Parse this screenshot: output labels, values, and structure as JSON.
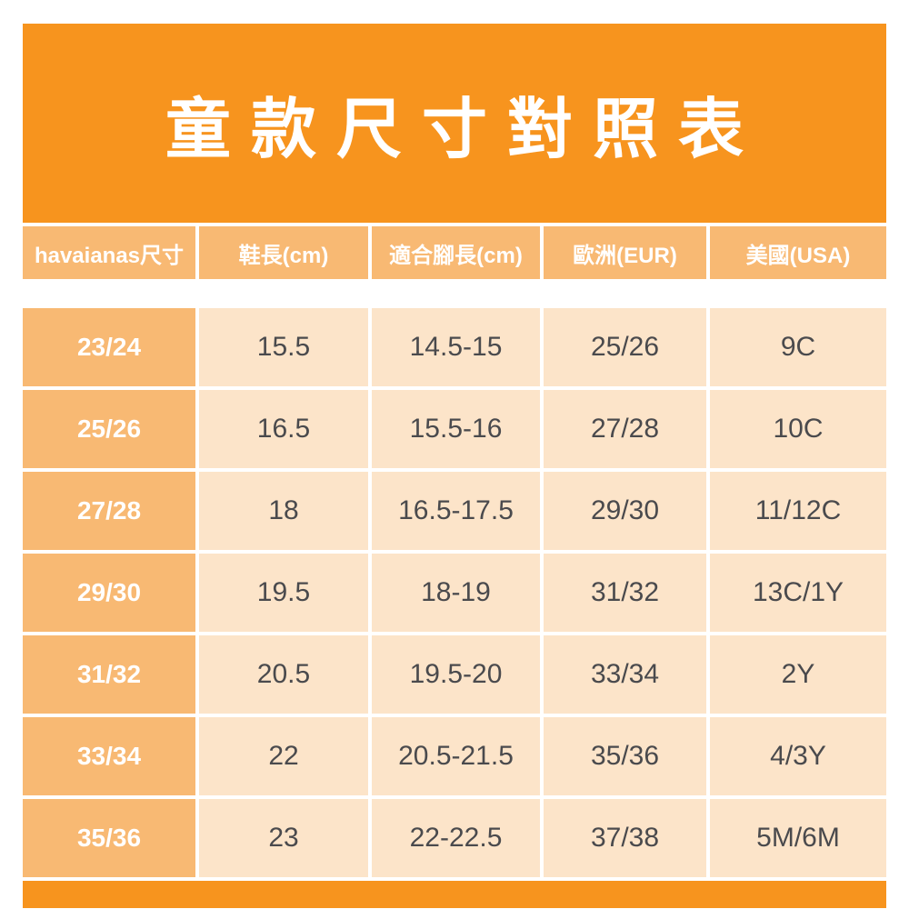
{
  "title": "童款尺寸對照表",
  "chart_data": {
    "type": "table",
    "title": "童款尺寸對照表",
    "columns": [
      "havaianas尺寸",
      "鞋長(cm)",
      "適合腳長(cm)",
      "歐洲(EUR)",
      "美國(USA)"
    ],
    "rows": [
      [
        "23/24",
        "15.5",
        "14.5-15",
        "25/26",
        "9C"
      ],
      [
        "25/26",
        "16.5",
        "15.5-16",
        "27/28",
        "10C"
      ],
      [
        "27/28",
        "18",
        "16.5-17.5",
        "29/30",
        "11/12C"
      ],
      [
        "29/30",
        "19.5",
        "18-19",
        "31/32",
        "13C/1Y"
      ],
      [
        "31/32",
        "20.5",
        "19.5-20",
        "33/34",
        "2Y"
      ],
      [
        "33/34",
        "22",
        "20.5-21.5",
        "35/36",
        "4/3Y"
      ],
      [
        "35/36",
        "23",
        "22-22.5",
        "37/38",
        "5M/6M"
      ]
    ]
  },
  "colors": {
    "accent_orange": "#F7941E",
    "header_orange": "#F8B973",
    "cell_peach": "#FCE4C9",
    "cell_text": "#4A4A4D",
    "title_text": "#FFFFFF"
  }
}
